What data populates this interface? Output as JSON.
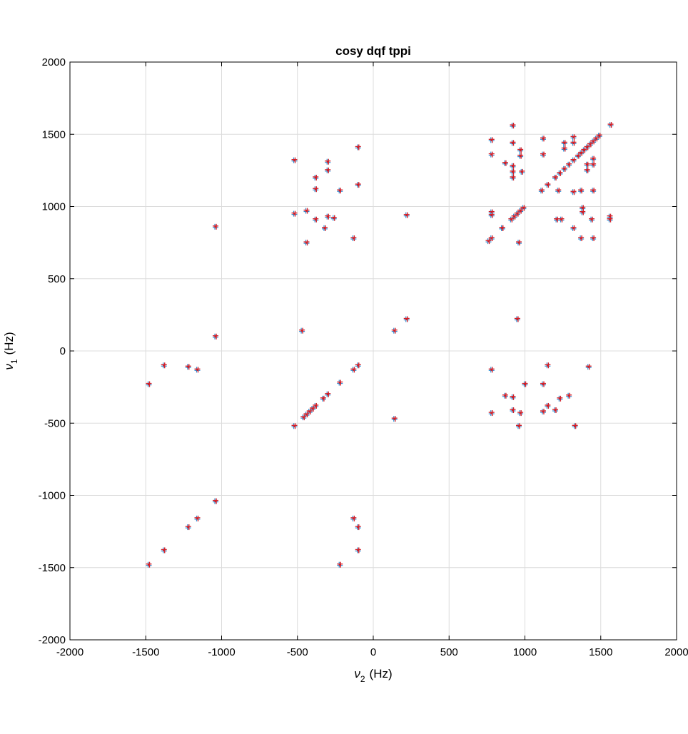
{
  "chart_data": {
    "type": "scatter",
    "title": "cosy dqf tppi",
    "xlabel": {
      "symbol": "ν",
      "subscript": "2",
      "unit": "(Hz)"
    },
    "ylabel": {
      "symbol": "ν",
      "subscript": "1",
      "unit": "(Hz)"
    },
    "xlim": [
      -2000,
      2000
    ],
    "ylim": [
      -2000,
      2000
    ],
    "x_ticks": [
      -2000,
      -1500,
      -1000,
      -500,
      0,
      500,
      1000,
      1500,
      2000
    ],
    "y_ticks": [
      -2000,
      -1500,
      -1000,
      -500,
      0,
      500,
      1000,
      1500,
      2000
    ],
    "x_tick_labels": [
      "-2000",
      "-1500",
      "-1000",
      "-500",
      "0",
      "500",
      "1000",
      "1500",
      "2000"
    ],
    "y_tick_labels": [
      "-2000",
      "-1500",
      "-1000",
      "-500",
      "0",
      "500",
      "1000",
      "1500",
      "2000"
    ],
    "grid": true,
    "colors": {
      "positive": "#d0202a",
      "negative": "#2b8fd6",
      "grid": "#dcdcdc",
      "axis": "#000000"
    },
    "series": [
      {
        "values": [
          [
            1565,
            1565
          ],
          [
            1490,
            1490
          ],
          [
            1470,
            1470
          ],
          [
            1450,
            1450
          ],
          [
            1430,
            1430
          ],
          [
            1410,
            1410
          ],
          [
            1390,
            1390
          ],
          [
            1370,
            1370
          ],
          [
            1350,
            1350
          ],
          [
            1320,
            1320
          ],
          [
            1290,
            1290
          ],
          [
            1260,
            1260
          ],
          [
            1230,
            1230
          ],
          [
            1200,
            1200
          ],
          [
            1150,
            1150
          ],
          [
            1110,
            1110
          ],
          [
            990,
            990
          ],
          [
            970,
            970
          ],
          [
            950,
            950
          ],
          [
            930,
            930
          ],
          [
            910,
            910
          ],
          [
            850,
            850
          ],
          [
            780,
            780
          ],
          [
            760,
            760
          ],
          [
            220,
            220
          ],
          [
            140,
            140
          ],
          [
            -100,
            -100
          ],
          [
            -130,
            -130
          ],
          [
            -220,
            -220
          ],
          [
            -300,
            -300
          ],
          [
            -330,
            -330
          ],
          [
            -380,
            -380
          ],
          [
            -400,
            -400
          ],
          [
            -420,
            -420
          ],
          [
            -440,
            -440
          ],
          [
            -460,
            -460
          ],
          [
            -520,
            -520
          ],
          [
            -1040,
            -1040
          ],
          [
            -1160,
            -1160
          ],
          [
            -1220,
            -1220
          ],
          [
            -1380,
            -1380
          ],
          [
            -1480,
            -1480
          ],
          [
            920,
            1560
          ],
          [
            780,
            1460
          ],
          [
            780,
            1360
          ],
          [
            870,
            1300
          ],
          [
            920,
            1280
          ],
          [
            920,
            1240
          ],
          [
            920,
            1200
          ],
          [
            920,
            1440
          ],
          [
            970,
            1390
          ],
          [
            970,
            1350
          ],
          [
            980,
            1240
          ],
          [
            1120,
            1470
          ],
          [
            1120,
            1360
          ],
          [
            1260,
            1440
          ],
          [
            1260,
            1400
          ],
          [
            1320,
            1480
          ],
          [
            1320,
            1440
          ],
          [
            1450,
            1330
          ],
          [
            1450,
            1290
          ],
          [
            1410,
            1290
          ],
          [
            1410,
            1250
          ],
          [
            1370,
            1110
          ],
          [
            1450,
            1110
          ],
          [
            1220,
            1110
          ],
          [
            1320,
            1100
          ],
          [
            780,
            960
          ],
          [
            780,
            940
          ],
          [
            1210,
            910
          ],
          [
            1240,
            910
          ],
          [
            1380,
            990
          ],
          [
            1380,
            960
          ],
          [
            1440,
            910
          ],
          [
            1560,
            930
          ],
          [
            1560,
            910
          ],
          [
            1320,
            850
          ],
          [
            1370,
            780
          ],
          [
            1450,
            780
          ],
          [
            960,
            750
          ],
          [
            850,
            850
          ],
          [
            -520,
            1320
          ],
          [
            -520,
            950
          ],
          [
            -100,
            1410
          ],
          [
            -100,
            1150
          ],
          [
            -130,
            780
          ],
          [
            -380,
            1200
          ],
          [
            -380,
            1120
          ],
          [
            -300,
            1310
          ],
          [
            -300,
            1250
          ],
          [
            -220,
            1110
          ],
          [
            -440,
            970
          ],
          [
            -380,
            910
          ],
          [
            -300,
            930
          ],
          [
            -260,
            920
          ],
          [
            -320,
            850
          ],
          [
            -440,
            750
          ],
          [
            220,
            940
          ],
          [
            -1040,
            860
          ],
          [
            950,
            220
          ],
          [
            -470,
            140
          ],
          [
            -1040,
            100
          ],
          [
            -1480,
            -230
          ],
          [
            -1380,
            -100
          ],
          [
            -1220,
            -110
          ],
          [
            -1160,
            -130
          ],
          [
            780,
            -130
          ],
          [
            1150,
            -100
          ],
          [
            1420,
            -110
          ],
          [
            1120,
            -230
          ],
          [
            1000,
            -230
          ],
          [
            870,
            -310
          ],
          [
            920,
            -320
          ],
          [
            1230,
            -330
          ],
          [
            1290,
            -310
          ],
          [
            920,
            -410
          ],
          [
            970,
            -430
          ],
          [
            1150,
            -380
          ],
          [
            1200,
            -410
          ],
          [
            1120,
            -420
          ],
          [
            960,
            -520
          ],
          [
            1330,
            -520
          ],
          [
            780,
            -430
          ],
          [
            140,
            -470
          ],
          [
            -130,
            -1160
          ],
          [
            -100,
            -1220
          ],
          [
            -100,
            -1380
          ],
          [
            -220,
            -1480
          ]
        ]
      }
    ]
  }
}
